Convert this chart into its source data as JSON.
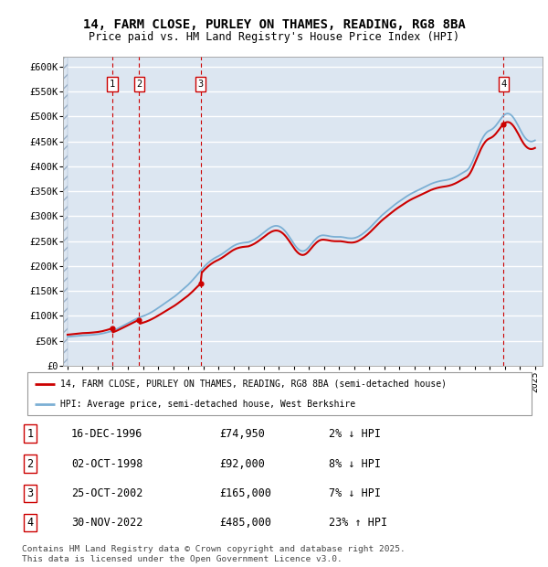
{
  "title_line1": "14, FARM CLOSE, PURLEY ON THAMES, READING, RG8 8BA",
  "title_line2": "Price paid vs. HM Land Registry's House Price Index (HPI)",
  "bg_color": "#dce6f1",
  "grid_color": "#ffffff",
  "ylim": [
    0,
    620000
  ],
  "yticks": [
    0,
    50000,
    100000,
    150000,
    200000,
    250000,
    300000,
    350000,
    400000,
    450000,
    500000,
    550000,
    600000
  ],
  "ytick_labels": [
    "£0",
    "£50K",
    "£100K",
    "£150K",
    "£200K",
    "£250K",
    "£300K",
    "£350K",
    "£400K",
    "£450K",
    "£500K",
    "£550K",
    "£600K"
  ],
  "sale_dates": [
    1996.96,
    1998.75,
    2002.82,
    2022.92
  ],
  "sale_prices": [
    74950,
    92000,
    165000,
    485000
  ],
  "sale_labels": [
    "1",
    "2",
    "3",
    "4"
  ],
  "sale_color": "#cc0000",
  "hpi_color": "#7bafd4",
  "legend_sale": "14, FARM CLOSE, PURLEY ON THAMES, READING, RG8 8BA (semi-detached house)",
  "legend_hpi": "HPI: Average price, semi-detached house, West Berkshire",
  "table_entries": [
    {
      "num": "1",
      "date": "16-DEC-1996",
      "price": "£74,950",
      "pct": "2% ↓ HPI"
    },
    {
      "num": "2",
      "date": "02-OCT-1998",
      "price": "£92,000",
      "pct": "8% ↓ HPI"
    },
    {
      "num": "3",
      "date": "25-OCT-2002",
      "price": "£165,000",
      "pct": "7% ↓ HPI"
    },
    {
      "num": "4",
      "date": "30-NOV-2022",
      "price": "£485,000",
      "pct": "23% ↑ HPI"
    }
  ],
  "footnote": "Contains HM Land Registry data © Crown copyright and database right 2025.\nThis data is licensed under the Open Government Licence v3.0.",
  "hpi_data": [
    [
      1994.0,
      58000
    ],
    [
      1994.1,
      58200
    ],
    [
      1994.2,
      58500
    ],
    [
      1994.3,
      58800
    ],
    [
      1994.4,
      59100
    ],
    [
      1994.5,
      59400
    ],
    [
      1994.6,
      59700
    ],
    [
      1994.7,
      60000
    ],
    [
      1994.8,
      60300
    ],
    [
      1994.9,
      60600
    ],
    [
      1995.0,
      60900
    ],
    [
      1995.1,
      61000
    ],
    [
      1995.2,
      61100
    ],
    [
      1995.3,
      61200
    ],
    [
      1995.4,
      61400
    ],
    [
      1995.5,
      61600
    ],
    [
      1995.6,
      61800
    ],
    [
      1995.7,
      62100
    ],
    [
      1995.8,
      62400
    ],
    [
      1995.9,
      62700
    ],
    [
      1996.0,
      63000
    ],
    [
      1996.1,
      63500
    ],
    [
      1996.2,
      64000
    ],
    [
      1996.3,
      64500
    ],
    [
      1996.4,
      65200
    ],
    [
      1996.5,
      65900
    ],
    [
      1996.6,
      66700
    ],
    [
      1996.7,
      67500
    ],
    [
      1996.8,
      68300
    ],
    [
      1996.9,
      69200
    ],
    [
      1997.0,
      70200
    ],
    [
      1997.1,
      71500
    ],
    [
      1997.2,
      72800
    ],
    [
      1997.3,
      74200
    ],
    [
      1997.4,
      75700
    ],
    [
      1997.5,
      77200
    ],
    [
      1997.6,
      78800
    ],
    [
      1997.7,
      80400
    ],
    [
      1997.8,
      82000
    ],
    [
      1997.9,
      83700
    ],
    [
      1998.0,
      85400
    ],
    [
      1998.1,
      87000
    ],
    [
      1998.2,
      88600
    ],
    [
      1998.3,
      90200
    ],
    [
      1998.4,
      91800
    ],
    [
      1998.5,
      93300
    ],
    [
      1998.6,
      94700
    ],
    [
      1998.7,
      96000
    ],
    [
      1998.8,
      97200
    ],
    [
      1998.9,
      98300
    ],
    [
      1999.0,
      99300
    ],
    [
      1999.1,
      100500
    ],
    [
      1999.2,
      101800
    ],
    [
      1999.3,
      103200
    ],
    [
      1999.4,
      104700
    ],
    [
      1999.5,
      106300
    ],
    [
      1999.6,
      108000
    ],
    [
      1999.7,
      109800
    ],
    [
      1999.8,
      111700
    ],
    [
      1999.9,
      113700
    ],
    [
      2000.0,
      115700
    ],
    [
      2000.1,
      117800
    ],
    [
      2000.2,
      119900
    ],
    [
      2000.3,
      122000
    ],
    [
      2000.4,
      124100
    ],
    [
      2000.5,
      126200
    ],
    [
      2000.6,
      128300
    ],
    [
      2000.7,
      130400
    ],
    [
      2000.8,
      132500
    ],
    [
      2000.9,
      134600
    ],
    [
      2001.0,
      136700
    ],
    [
      2001.1,
      139000
    ],
    [
      2001.2,
      141400
    ],
    [
      2001.3,
      143900
    ],
    [
      2001.4,
      146500
    ],
    [
      2001.5,
      149100
    ],
    [
      2001.6,
      151700
    ],
    [
      2001.7,
      154300
    ],
    [
      2001.8,
      157000
    ],
    [
      2001.9,
      159700
    ],
    [
      2002.0,
      162400
    ],
    [
      2002.1,
      165500
    ],
    [
      2002.2,
      168700
    ],
    [
      2002.3,
      172000
    ],
    [
      2002.4,
      175400
    ],
    [
      2002.5,
      178800
    ],
    [
      2002.6,
      182300
    ],
    [
      2002.7,
      185900
    ],
    [
      2002.8,
      189500
    ],
    [
      2002.9,
      193100
    ],
    [
      2003.0,
      196700
    ],
    [
      2003.1,
      200000
    ],
    [
      2003.2,
      203000
    ],
    [
      2003.3,
      205800
    ],
    [
      2003.4,
      208400
    ],
    [
      2003.5,
      210800
    ],
    [
      2003.6,
      213000
    ],
    [
      2003.7,
      215000
    ],
    [
      2003.8,
      216800
    ],
    [
      2003.9,
      218400
    ],
    [
      2004.0,
      219800
    ],
    [
      2004.1,
      221500
    ],
    [
      2004.2,
      223300
    ],
    [
      2004.3,
      225300
    ],
    [
      2004.4,
      227400
    ],
    [
      2004.5,
      229600
    ],
    [
      2004.6,
      231800
    ],
    [
      2004.7,
      234100
    ],
    [
      2004.8,
      236300
    ],
    [
      2004.9,
      238400
    ],
    [
      2005.0,
      240300
    ],
    [
      2005.1,
      241900
    ],
    [
      2005.2,
      243300
    ],
    [
      2005.3,
      244400
    ],
    [
      2005.4,
      245300
    ],
    [
      2005.5,
      246000
    ],
    [
      2005.6,
      246500
    ],
    [
      2005.7,
      246900
    ],
    [
      2005.8,
      247200
    ],
    [
      2005.9,
      247500
    ],
    [
      2006.0,
      247900
    ],
    [
      2006.1,
      249000
    ],
    [
      2006.2,
      250300
    ],
    [
      2006.3,
      251800
    ],
    [
      2006.4,
      253500
    ],
    [
      2006.5,
      255400
    ],
    [
      2006.6,
      257500
    ],
    [
      2006.7,
      259700
    ],
    [
      2006.8,
      262000
    ],
    [
      2006.9,
      264400
    ],
    [
      2007.0,
      266900
    ],
    [
      2007.1,
      269400
    ],
    [
      2007.2,
      271800
    ],
    [
      2007.3,
      274000
    ],
    [
      2007.4,
      276000
    ],
    [
      2007.5,
      277800
    ],
    [
      2007.6,
      279200
    ],
    [
      2007.7,
      280200
    ],
    [
      2007.8,
      280700
    ],
    [
      2007.9,
      280600
    ],
    [
      2008.0,
      279900
    ],
    [
      2008.1,
      278600
    ],
    [
      2008.2,
      276700
    ],
    [
      2008.3,
      274200
    ],
    [
      2008.4,
      271100
    ],
    [
      2008.5,
      267500
    ],
    [
      2008.6,
      263400
    ],
    [
      2008.7,
      259000
    ],
    [
      2008.8,
      254400
    ],
    [
      2008.9,
      249700
    ],
    [
      2009.0,
      245000
    ],
    [
      2009.1,
      240700
    ],
    [
      2009.2,
      237000
    ],
    [
      2009.3,
      234000
    ],
    [
      2009.4,
      231700
    ],
    [
      2009.5,
      230300
    ],
    [
      2009.6,
      229900
    ],
    [
      2009.7,
      230500
    ],
    [
      2009.8,
      232100
    ],
    [
      2009.9,
      234600
    ],
    [
      2010.0,
      237800
    ],
    [
      2010.1,
      241400
    ],
    [
      2010.2,
      245200
    ],
    [
      2010.3,
      249000
    ],
    [
      2010.4,
      252400
    ],
    [
      2010.5,
      255500
    ],
    [
      2010.6,
      258000
    ],
    [
      2010.7,
      259900
    ],
    [
      2010.8,
      261100
    ],
    [
      2010.9,
      261700
    ],
    [
      2011.0,
      261700
    ],
    [
      2011.1,
      261400
    ],
    [
      2011.2,
      260900
    ],
    [
      2011.3,
      260300
    ],
    [
      2011.4,
      259700
    ],
    [
      2011.5,
      259200
    ],
    [
      2011.6,
      258800
    ],
    [
      2011.7,
      258600
    ],
    [
      2011.8,
      258500
    ],
    [
      2011.9,
      258500
    ],
    [
      2012.0,
      258600
    ],
    [
      2012.1,
      258500
    ],
    [
      2012.2,
      258200
    ],
    [
      2012.3,
      257700
    ],
    [
      2012.4,
      257100
    ],
    [
      2012.5,
      256500
    ],
    [
      2012.6,
      256000
    ],
    [
      2012.7,
      255700
    ],
    [
      2012.8,
      255600
    ],
    [
      2012.9,
      255700
    ],
    [
      2013.0,
      256100
    ],
    [
      2013.1,
      256900
    ],
    [
      2013.2,
      258000
    ],
    [
      2013.3,
      259400
    ],
    [
      2013.4,
      261100
    ],
    [
      2013.5,
      263000
    ],
    [
      2013.6,
      265200
    ],
    [
      2013.7,
      267500
    ],
    [
      2013.8,
      270000
    ],
    [
      2013.9,
      272600
    ],
    [
      2014.0,
      275400
    ],
    [
      2014.1,
      278400
    ],
    [
      2014.2,
      281500
    ],
    [
      2014.3,
      284600
    ],
    [
      2014.4,
      287800
    ],
    [
      2014.5,
      291000
    ],
    [
      2014.6,
      294200
    ],
    [
      2014.7,
      297300
    ],
    [
      2014.8,
      300300
    ],
    [
      2014.9,
      303100
    ],
    [
      2015.0,
      305700
    ],
    [
      2015.1,
      308200
    ],
    [
      2015.2,
      310700
    ],
    [
      2015.3,
      313200
    ],
    [
      2015.4,
      315700
    ],
    [
      2015.5,
      318200
    ],
    [
      2015.6,
      320700
    ],
    [
      2015.7,
      323100
    ],
    [
      2015.8,
      325400
    ],
    [
      2015.9,
      327600
    ],
    [
      2016.0,
      329700
    ],
    [
      2016.1,
      331800
    ],
    [
      2016.2,
      333900
    ],
    [
      2016.3,
      336000
    ],
    [
      2016.4,
      338000
    ],
    [
      2016.5,
      340000
    ],
    [
      2016.6,
      341900
    ],
    [
      2016.7,
      343700
    ],
    [
      2016.8,
      345400
    ],
    [
      2016.9,
      347000
    ],
    [
      2017.0,
      348500
    ],
    [
      2017.1,
      350000
    ],
    [
      2017.2,
      351500
    ],
    [
      2017.3,
      353000
    ],
    [
      2017.4,
      354500
    ],
    [
      2017.5,
      356000
    ],
    [
      2017.6,
      357500
    ],
    [
      2017.7,
      359000
    ],
    [
      2017.8,
      360500
    ],
    [
      2017.9,
      362000
    ],
    [
      2018.0,
      363500
    ],
    [
      2018.1,
      364800
    ],
    [
      2018.2,
      366000
    ],
    [
      2018.3,
      367100
    ],
    [
      2018.4,
      368100
    ],
    [
      2018.5,
      369000
    ],
    [
      2018.6,
      369800
    ],
    [
      2018.7,
      370500
    ],
    [
      2018.8,
      371100
    ],
    [
      2018.9,
      371600
    ],
    [
      2019.0,
      372000
    ],
    [
      2019.1,
      372500
    ],
    [
      2019.2,
      373100
    ],
    [
      2019.3,
      373800
    ],
    [
      2019.4,
      374700
    ],
    [
      2019.5,
      375700
    ],
    [
      2019.6,
      376900
    ],
    [
      2019.7,
      378300
    ],
    [
      2019.8,
      379800
    ],
    [
      2019.9,
      381500
    ],
    [
      2020.0,
      383300
    ],
    [
      2020.1,
      385200
    ],
    [
      2020.2,
      387000
    ],
    [
      2020.3,
      388700
    ],
    [
      2020.4,
      390300
    ],
    [
      2020.5,
      392300
    ],
    [
      2020.6,
      395500
    ],
    [
      2020.7,
      400000
    ],
    [
      2020.8,
      405700
    ],
    [
      2020.9,
      412400
    ],
    [
      2021.0,
      419800
    ],
    [
      2021.1,
      427400
    ],
    [
      2021.2,
      435000
    ],
    [
      2021.3,
      442300
    ],
    [
      2021.4,
      449000
    ],
    [
      2021.5,
      455100
    ],
    [
      2021.6,
      460400
    ],
    [
      2021.7,
      464800
    ],
    [
      2021.8,
      468200
    ],
    [
      2021.9,
      470600
    ],
    [
      2022.0,
      472100
    ],
    [
      2022.1,
      473600
    ],
    [
      2022.2,
      475600
    ],
    [
      2022.3,
      478300
    ],
    [
      2022.4,
      481600
    ],
    [
      2022.5,
      485500
    ],
    [
      2022.6,
      489700
    ],
    [
      2022.7,
      494000
    ],
    [
      2022.8,
      498000
    ],
    [
      2022.9,
      501400
    ],
    [
      2023.0,
      504000
    ],
    [
      2023.1,
      505600
    ],
    [
      2023.2,
      506000
    ],
    [
      2023.3,
      505300
    ],
    [
      2023.4,
      503400
    ],
    [
      2023.5,
      500400
    ],
    [
      2023.6,
      496500
    ],
    [
      2023.7,
      491800
    ],
    [
      2023.8,
      486500
    ],
    [
      2023.9,
      480800
    ],
    [
      2024.0,
      474800
    ],
    [
      2024.1,
      469000
    ],
    [
      2024.2,
      463700
    ],
    [
      2024.3,
      459100
    ],
    [
      2024.4,
      455400
    ],
    [
      2024.5,
      452600
    ],
    [
      2024.6,
      450800
    ],
    [
      2024.7,
      449900
    ],
    [
      2024.8,
      449900
    ],
    [
      2024.9,
      450700
    ],
    [
      2025.0,
      452200
    ]
  ],
  "xlim": [
    1993.7,
    2025.5
  ]
}
